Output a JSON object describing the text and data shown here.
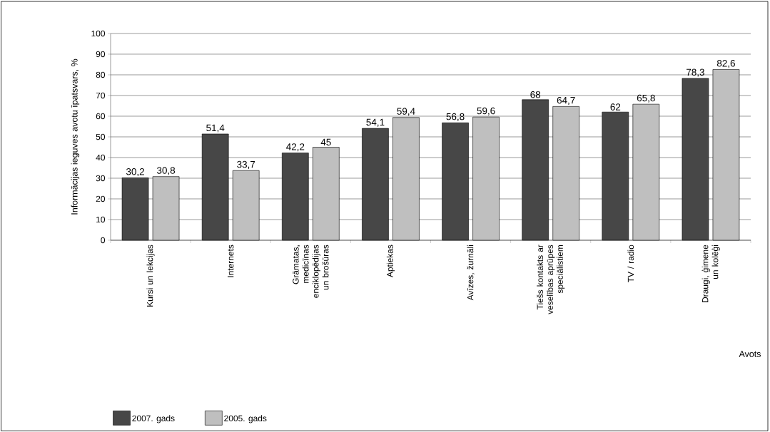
{
  "chart_data": {
    "type": "bar",
    "ylabel": "Informācijas ieguves avotu īpatsvars, %",
    "xlabel": "Avots",
    "categories": [
      "Kursi un lekcijas",
      "Internets",
      "Grāmatas, medicīnas enciklopēdijas un brošūras",
      "Aptiekas",
      "Avīzes, žurnāli",
      "Tiešs kontakts ar veselības aprūpes speciālistiem",
      "TV / radio",
      "Draugi, ģimene un kolēģi"
    ],
    "series": [
      {
        "name": "2007. gads",
        "color": "#474747",
        "values": [
          30.2,
          51.4,
          42.2,
          54.1,
          56.8,
          68,
          62,
          78.3
        ],
        "value_labels": [
          "30,2",
          "51,4",
          "42,2",
          "54,1",
          "56,8",
          "68",
          "62",
          "78,3"
        ]
      },
      {
        "name": "2005. gads",
        "color": "#bfbfbf",
        "values": [
          30.8,
          33.7,
          45,
          59.4,
          59.6,
          64.7,
          65.8,
          82.6
        ],
        "value_labels": [
          "30,8",
          "33,7",
          "45",
          "59,4",
          "59,6",
          "64,7",
          "65,8",
          "82,6"
        ]
      }
    ],
    "ylim": [
      0,
      100
    ],
    "yticks": [
      0,
      10,
      20,
      30,
      40,
      50,
      60,
      70,
      80,
      90,
      100
    ],
    "grid": "y",
    "legend": "bottom left"
  }
}
